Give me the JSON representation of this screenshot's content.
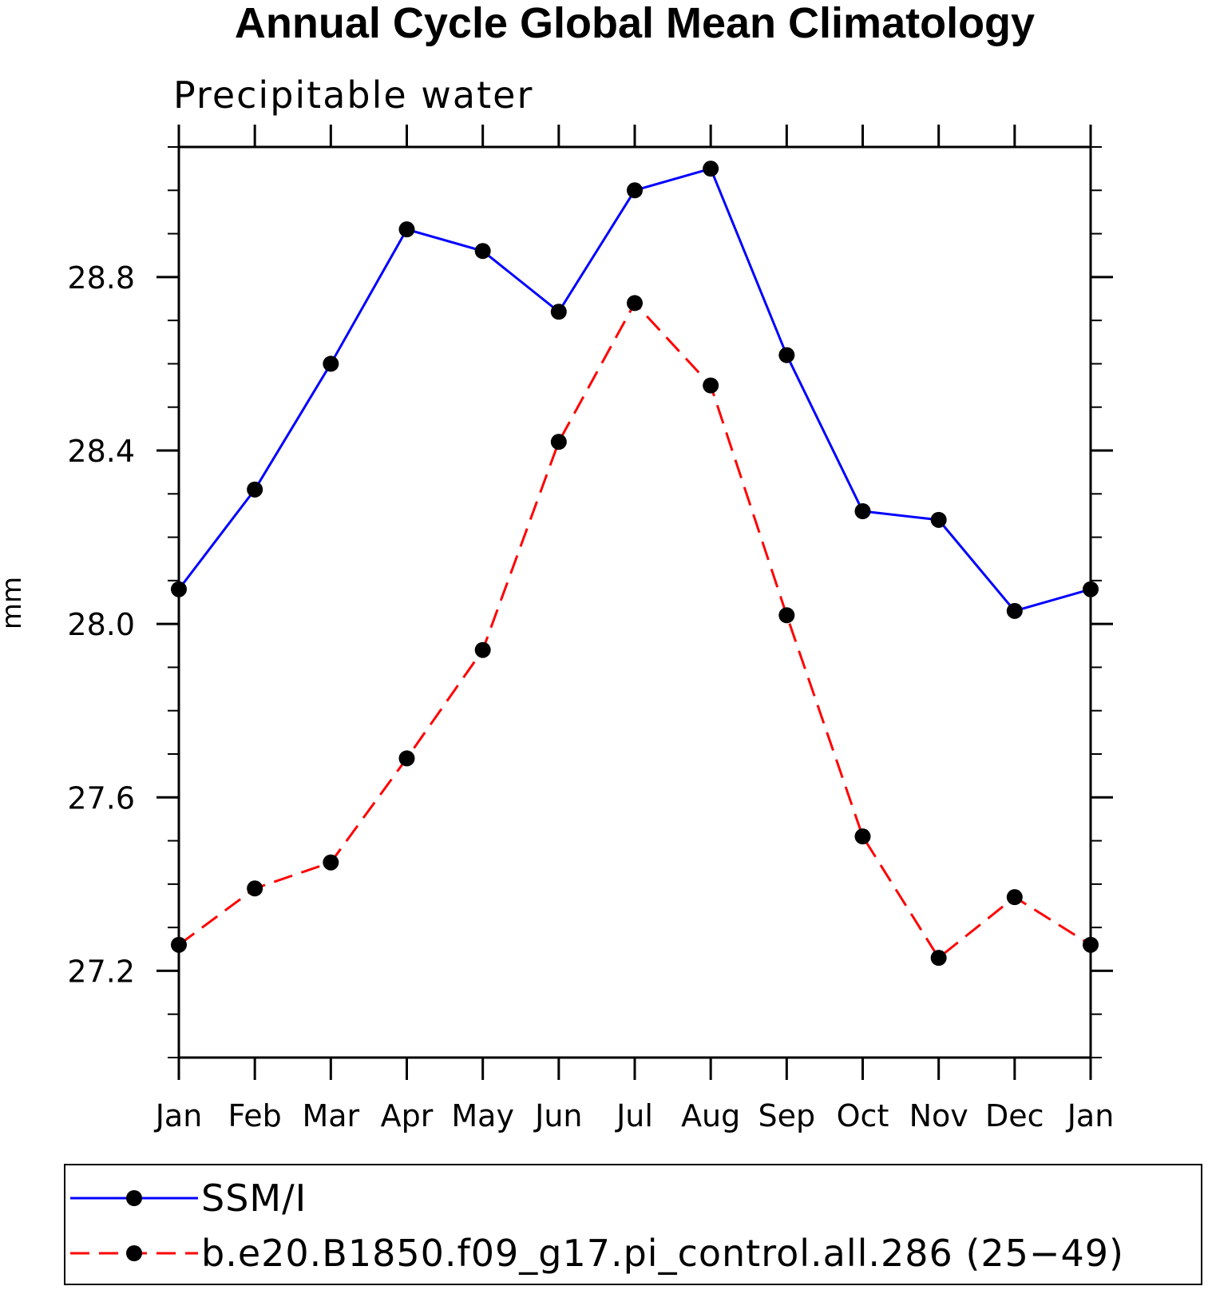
{
  "chart_data": {
    "type": "line",
    "title": "Annual Cycle Global Mean Climatology",
    "subtitle": "Precipitable water",
    "ylabel": "mm",
    "xlabel": "",
    "categories": [
      "Jan",
      "Feb",
      "Mar",
      "Apr",
      "May",
      "Jun",
      "Jul",
      "Aug",
      "Sep",
      "Oct",
      "Nov",
      "Dec",
      "Jan"
    ],
    "yticks": [
      "27.2",
      "27.6",
      "28.0",
      "28.4",
      "28.8"
    ],
    "ylim": [
      27.0,
      29.1
    ],
    "grid": false,
    "legend_position": "bottom",
    "series": [
      {
        "name": "SSM/I",
        "color": "#0000ff",
        "dash": "solid",
        "marker": "filled-circle",
        "values": [
          28.08,
          28.31,
          28.6,
          28.91,
          28.86,
          28.72,
          29.0,
          29.05,
          28.62,
          28.26,
          28.24,
          28.03,
          28.08
        ]
      },
      {
        "name": "b.e20.B1850.f09_g17.pi_control.all.286 (25−49)",
        "color": "#ff0000",
        "dash": "dashed",
        "marker": "filled-circle",
        "values": [
          27.26,
          27.39,
          27.45,
          27.69,
          27.94,
          28.42,
          28.74,
          28.55,
          28.02,
          27.51,
          27.23,
          27.37,
          27.26
        ]
      }
    ]
  }
}
